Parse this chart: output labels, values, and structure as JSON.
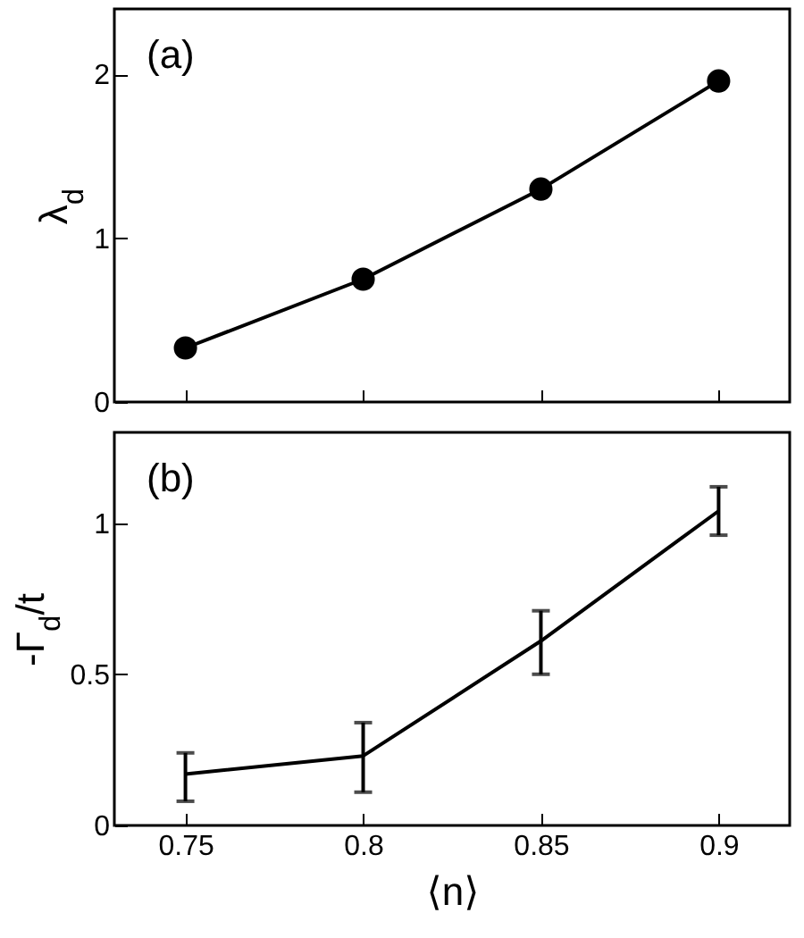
{
  "chart_data": [
    {
      "type": "line",
      "ylabel": "λ$_{d}$",
      "annotations": [
        "(a)"
      ],
      "x": [
        0.75,
        0.8,
        0.85,
        0.9
      ],
      "xlim": [
        0.73,
        0.92
      ],
      "xticks": [
        0.75,
        0.8,
        0.85,
        0.9
      ],
      "ylim": [
        0,
        2.4
      ],
      "yticks": [
        0,
        1,
        2
      ],
      "tick_labels": "y",
      "marker": "circle",
      "series": [
        {
          "color": "#000000",
          "values": [
            0.33,
            0.75,
            1.3,
            1.96
          ]
        }
      ]
    },
    {
      "type": "line",
      "xlabel": "⟨n⟩",
      "ylabel": "-Γ$_{d}$/t",
      "annotations": [
        "(b)"
      ],
      "x": [
        0.75,
        0.8,
        0.85,
        0.9
      ],
      "xlim": [
        0.73,
        0.92
      ],
      "xticks": [
        0.75,
        0.8,
        0.85,
        0.9
      ],
      "ylim": [
        0,
        1.3
      ],
      "yticks": [
        0,
        0.5,
        1
      ],
      "series": [
        {
          "color": "#000000",
          "values": [
            0.17,
            0.23,
            0.61,
            1.04
          ],
          "errors": [
            [
              0.08,
              0.24
            ],
            [
              0.11,
              0.34
            ],
            [
              0.5,
              0.71
            ],
            [
              0.96,
              1.12
            ]
          ]
        }
      ]
    }
  ]
}
